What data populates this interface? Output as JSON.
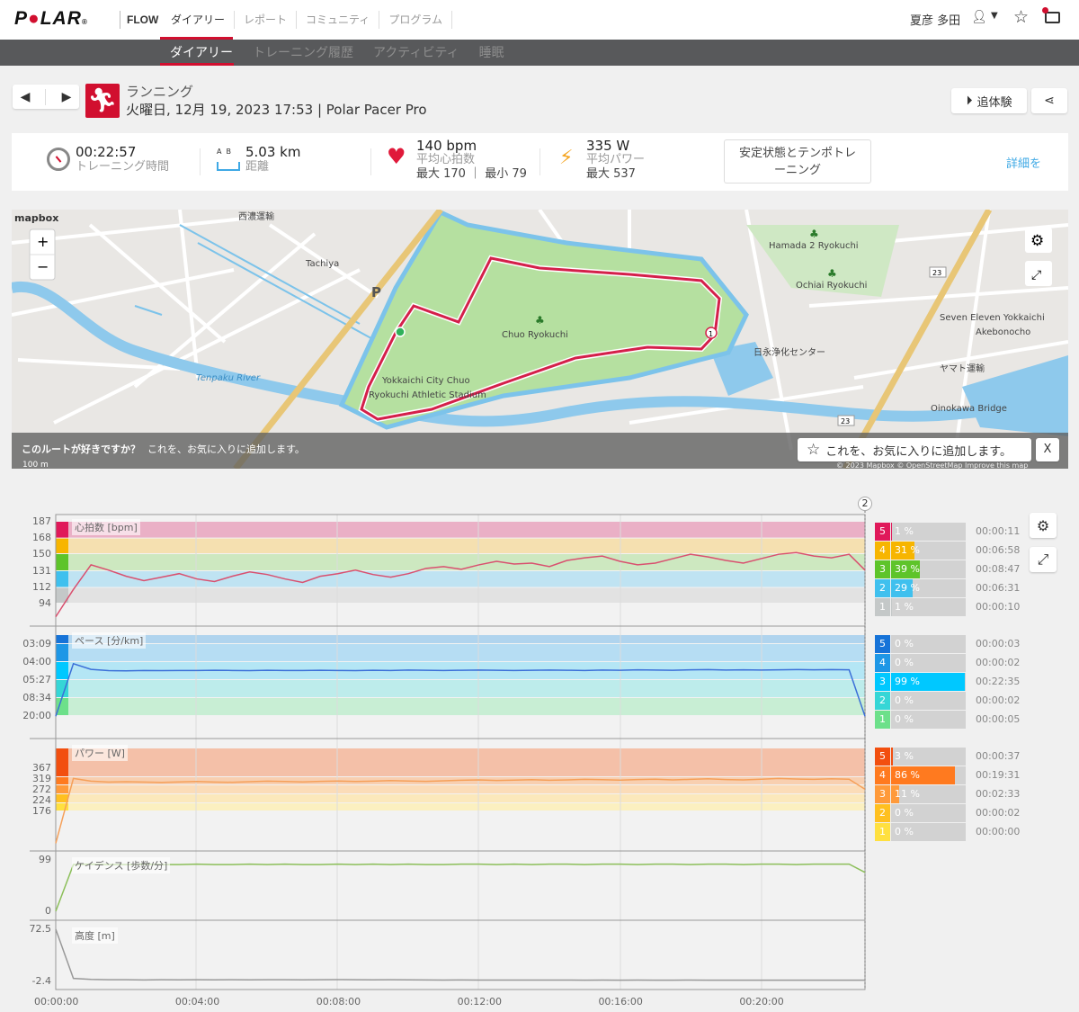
{
  "header": {
    "brand": "POLAR",
    "product": "FLOW",
    "nav": [
      "ダイアリー",
      "レポート",
      "コミュニティ",
      "プログラム"
    ],
    "user": "夏彦 多田",
    "icons": [
      "user-icon",
      "chevron-down-icon",
      "star-icon",
      "notification-icon"
    ]
  },
  "subnav": [
    "ダイアリー",
    "トレーニング履歴",
    "アクティビティ",
    "睡眠"
  ],
  "activity": {
    "sport": "ランニング",
    "datetime": "火曜日, 12月 19, 2023 17:53 | Polar Pacer Pro",
    "replay_label": "追体験",
    "accent": "#d10f2f"
  },
  "summary": {
    "duration": "00:22:57",
    "duration_label": "トレーニング時間",
    "ab_label": "A  B",
    "distance": "5.03 km",
    "distance_label": "距離",
    "hr": "140 bpm",
    "hr_label": "平均心拍数",
    "hr_minmax": "最大 170 ｜ 最小 79",
    "power": "335 W",
    "power_label": "平均パワー",
    "power_max": "最大 537",
    "steady_button": "安定状態とテンポトレーニング",
    "details_link": "詳細を"
  },
  "map": {
    "brand": "mapbox",
    "labels": [
      "西濃運輸",
      "Tachiya",
      "P",
      "Chuo Ryokuchi",
      "Yokkaichi City Chuo",
      "Ryokuchi Athletic Stadium",
      "Tenpaku River",
      "Hamada 2 Ryokuchi",
      "Ochiai Ryokuchi",
      "Seven Eleven Yokkaichi",
      "Akebonocho",
      "日永浄化センター",
      "ヤマト運輸",
      "Oinokawa Bridge",
      "23",
      "23"
    ],
    "scale": "100 m",
    "attribution": "© 2023 Mapbox © OpenStreetMap Improve this map",
    "zoom_in": "+",
    "zoom_out": "−",
    "favorite_prompt": "このルートが好きですか？",
    "favorite_sub": "これを、お気に入りに追加します。",
    "favorite_button": "これを、お気に入りに追加します。",
    "close": "X",
    "lap_markers": [
      "1"
    ]
  },
  "chart_data": [
    {
      "type": "line",
      "label": "心拍数 [bpm]",
      "yticks": [
        "187",
        "168",
        "150",
        "131",
        "112",
        "94"
      ],
      "zone_edges": [
        187,
        168,
        150,
        131,
        112,
        94
      ],
      "color": "#d9506f",
      "interval_s": 30,
      "values": [
        79,
        110,
        138,
        132,
        125,
        120,
        124,
        128,
        122,
        119,
        125,
        130,
        127,
        122,
        118,
        125,
        128,
        132,
        127,
        124,
        128,
        134,
        136,
        133,
        138,
        142,
        139,
        140,
        136,
        143,
        146,
        148,
        142,
        138,
        140,
        145,
        150,
        147,
        143,
        140,
        145,
        150,
        152,
        148,
        146,
        150,
        132
      ]
    },
    {
      "type": "line",
      "label": "ペース [分/km]",
      "yticks": [
        "03:09",
        "04:00",
        "05:27",
        "08:34",
        "20:00"
      ],
      "color": "#3b6fd8",
      "interval_s": 30,
      "values": [
        "20:00",
        "04:05",
        "04:28",
        "04:34",
        "04:35",
        "04:33",
        "04:34",
        "04:33",
        "04:33",
        "04:32",
        "04:33",
        "04:34",
        "04:32",
        "04:33",
        "04:33",
        "04:32",
        "04:33",
        "04:34",
        "04:32",
        "04:33",
        "04:31",
        "04:32",
        "04:33",
        "04:32",
        "04:31",
        "04:32",
        "04:33",
        "04:32",
        "04:31",
        "04:32",
        "04:33",
        "04:31",
        "04:32",
        "04:30",
        "04:31",
        "04:32",
        "04:30",
        "04:29",
        "04:31",
        "04:30",
        "04:31",
        "04:30",
        "04:29",
        "04:30",
        "04:29",
        "04:30",
        "20:00"
      ]
    },
    {
      "type": "line",
      "label": "パワー [W]",
      "yticks": [
        "367",
        "319",
        "272",
        "224",
        "176"
      ],
      "color": "#f5a05a",
      "interval_s": 30,
      "values": [
        0,
        360,
        345,
        340,
        342,
        340,
        338,
        341,
        343,
        340,
        339,
        342,
        345,
        343,
        341,
        344,
        346,
        343,
        345,
        348,
        346,
        344,
        347,
        350,
        352,
        349,
        351,
        353,
        350,
        352,
        355,
        353,
        351,
        354,
        356,
        352,
        355,
        358,
        354,
        352,
        356,
        360,
        357,
        355,
        358,
        356,
        300
      ]
    },
    {
      "type": "line",
      "label": "ケイデンス [歩数/分]",
      "yticks": [
        "99",
        "0"
      ],
      "color": "#8cbf5a",
      "interval_s": 30,
      "values": [
        0,
        90,
        91,
        90,
        90,
        91,
        90,
        90,
        91,
        90,
        90,
        91,
        90,
        91,
        90,
        90,
        91,
        90,
        91,
        90,
        91,
        90,
        90,
        91,
        91,
        90,
        91,
        90,
        91,
        91,
        90,
        91,
        91,
        90,
        91,
        91,
        90,
        91,
        91,
        90,
        91,
        91,
        90,
        91,
        91,
        91,
        75
      ]
    },
    {
      "type": "line",
      "label": "高度 [m]",
      "yticks": [
        "72.5",
        "-2.4"
      ],
      "color": "#999999",
      "interval_s": 30,
      "values": [
        72.5,
        2,
        0.5,
        0,
        0,
        -0.3,
        0,
        -0.2,
        0,
        -0.1,
        0,
        -0.2,
        0,
        0,
        -0.1,
        0,
        0.2,
        0,
        -0.1,
        0,
        -0.2,
        -0.3,
        -0.4,
        -0.3,
        -0.4,
        -0.5,
        -0.4,
        -0.5,
        -0.4,
        -0.5,
        -0.6,
        -0.5,
        -0.6,
        -0.5,
        -0.6,
        -0.6,
        -0.5,
        -0.6,
        -0.7,
        -0.6,
        -0.7,
        -0.6,
        -0.7,
        -0.6,
        -0.7,
        -0.6,
        -0.7
      ]
    }
  ],
  "xaxis": {
    "ticks": [
      "00:00:00",
      "00:04:00",
      "00:08:00",
      "00:12:00",
      "00:16:00",
      "00:20:00"
    ],
    "duration": "00:22:57",
    "lap_marker": "2"
  },
  "zones": {
    "hr": [
      {
        "z": "5",
        "pct": "1 %",
        "v": 1,
        "time": "00:00:11",
        "color": "#e0195a"
      },
      {
        "z": "4",
        "pct": "31 %",
        "v": 31,
        "time": "00:06:58",
        "color": "#f7b500"
      },
      {
        "z": "3",
        "pct": "39 %",
        "v": 39,
        "time": "00:08:47",
        "color": "#5ec42a"
      },
      {
        "z": "2",
        "pct": "29 %",
        "v": 29,
        "time": "00:06:31",
        "color": "#3fc0ee"
      },
      {
        "z": "1",
        "pct": "1 %",
        "v": 1,
        "time": "00:00:10",
        "color": "#c4c8c8"
      }
    ],
    "pace": [
      {
        "z": "5",
        "pct": "0 %",
        "v": 0,
        "time": "00:00:03",
        "color": "#1673d8"
      },
      {
        "z": "4",
        "pct": "0 %",
        "v": 0,
        "time": "00:00:02",
        "color": "#1e97e6"
      },
      {
        "z": "3",
        "pct": "99 %",
        "v": 99,
        "time": "00:22:35",
        "color": "#00c8ff"
      },
      {
        "z": "2",
        "pct": "0 %",
        "v": 0,
        "time": "00:00:02",
        "color": "#36d6d6"
      },
      {
        "z": "1",
        "pct": "0 %",
        "v": 0,
        "time": "00:00:05",
        "color": "#6de08a"
      }
    ],
    "power": [
      {
        "z": "5",
        "pct": "3 %",
        "v": 3,
        "time": "00:00:37",
        "color": "#f24f0f"
      },
      {
        "z": "4",
        "pct": "86 %",
        "v": 86,
        "time": "00:19:31",
        "color": "#ff7a1f"
      },
      {
        "z": "3",
        "pct": "11 %",
        "v": 11,
        "time": "00:02:33",
        "color": "#ff9a3a"
      },
      {
        "z": "2",
        "pct": "0 %",
        "v": 0,
        "time": "00:00:02",
        "color": "#ffc020"
      },
      {
        "z": "1",
        "pct": "0 %",
        "v": 0,
        "time": "00:00:00",
        "color": "#ffe040"
      }
    ]
  }
}
